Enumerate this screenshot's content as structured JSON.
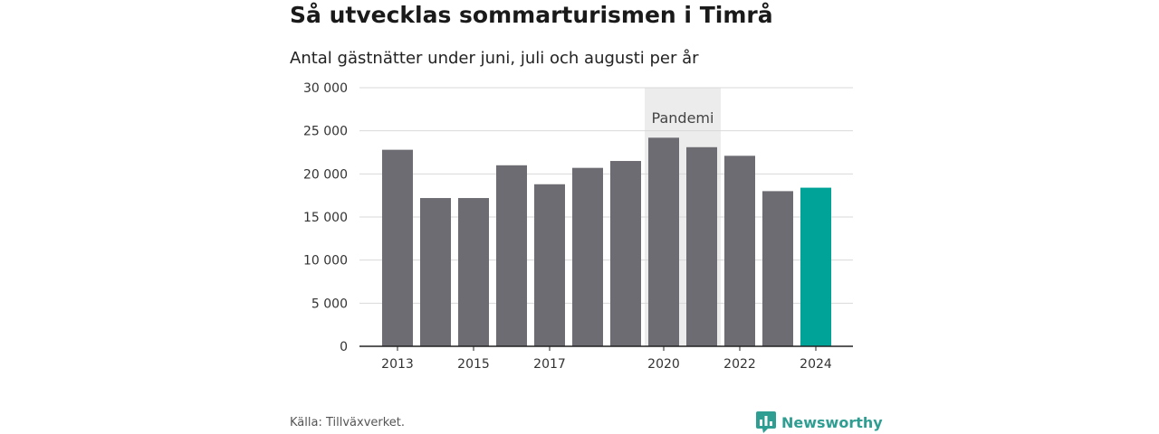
{
  "title": "Så utvecklas sommarturismen i Timrå",
  "subtitle": "Antal gästnätter under juni, juli och augusti per år",
  "source": "Källa: Tillväxverket.",
  "brand": "Newsworthy",
  "chart_data": {
    "type": "bar",
    "categories": [
      "2013",
      "2014",
      "2015",
      "2016",
      "2017",
      "2018",
      "2019",
      "2020",
      "2021",
      "2022",
      "2023",
      "2024"
    ],
    "x_tick_labels": [
      "2013",
      "",
      "2015",
      "",
      "2017",
      "",
      "",
      "2020",
      "",
      "2022",
      "",
      "2024"
    ],
    "values": [
      22800,
      17200,
      17200,
      21000,
      18800,
      20700,
      21500,
      24200,
      23100,
      22100,
      18000,
      18400
    ],
    "highlight_index": 11,
    "ylim": [
      0,
      30000
    ],
    "yticks": [
      0,
      5000,
      10000,
      15000,
      20000,
      25000,
      30000
    ],
    "ytick_labels": [
      "0",
      "5 000",
      "10 000",
      "15 000",
      "20 000",
      "25 000",
      "30 000"
    ],
    "annotation": {
      "label": "Pandemi",
      "from": "2020",
      "to": "2021"
    },
    "colors": {
      "bar": "#6d6c72",
      "highlight": "#00a398",
      "band": "#ececec",
      "grid": "#d9d9d9",
      "axis": "#222222"
    },
    "grid": true,
    "legend": "none"
  }
}
